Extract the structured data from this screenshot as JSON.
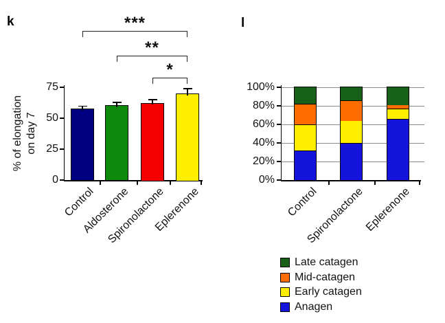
{
  "panels": {
    "k": {
      "letter": "k",
      "ylabel_lines": [
        "% of elongation",
        "on day 7"
      ]
    },
    "l": {
      "letter": "l"
    }
  },
  "chart_data": [
    {
      "panel": "k",
      "type": "bar",
      "ylabel": "% of elongation on day 7",
      "categories": [
        "Control",
        "Aldosterone",
        "Spironolactone",
        "Eplerenone"
      ],
      "values": [
        58,
        60.5,
        62.5,
        70
      ],
      "errors_plus": [
        1.8,
        2.2,
        2.6,
        4
      ],
      "bar_colors": [
        "#000080",
        "#0b8a0b",
        "#f40000",
        "#ffee00"
      ],
      "yticks": [
        0,
        25,
        50,
        75
      ],
      "ylim": [
        0,
        75
      ],
      "grid": false,
      "significance_brackets": [
        {
          "from": "Control",
          "to": "Eplerenone",
          "label": "***"
        },
        {
          "from": "Aldosterone",
          "to": "Eplerenone",
          "label": "**"
        },
        {
          "from": "Spironolactone",
          "to": "Eplerenone",
          "label": "*"
        }
      ]
    },
    {
      "panel": "l",
      "type": "stacked_bar",
      "units": "percent",
      "categories": [
        "Control",
        "Spironolactone",
        "Eplerenone"
      ],
      "series": [
        {
          "name": "Anagen",
          "color": "#1414dd",
          "values": [
            32,
            40,
            66
          ]
        },
        {
          "name": "Early catagen",
          "color": "#ffee00",
          "values": [
            28,
            24,
            11
          ]
        },
        {
          "name": "Mid-catagen",
          "color": "#ff6d00",
          "values": [
            22,
            22,
            4
          ]
        },
        {
          "name": "Late catagen",
          "color": "#176118",
          "values": [
            18,
            14,
            19
          ]
        }
      ],
      "ytick_labels": [
        "0%",
        "20%",
        "40%",
        "60%",
        "80%",
        "100%"
      ],
      "ylim": [
        0,
        100
      ],
      "grid": true,
      "legend": {
        "position": "bottom-left",
        "order_top_to_bottom": [
          "Late catagen",
          "Mid-catagen",
          "Early catagen",
          "Anagen"
        ]
      }
    }
  ]
}
